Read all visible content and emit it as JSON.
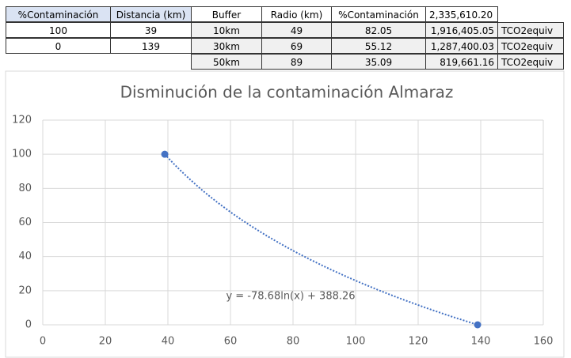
{
  "left_table": {
    "header": [
      "%Contaminación",
      "Distancia (km)"
    ],
    "rows": [
      [
        "100",
        "39"
      ],
      [
        "0",
        "139"
      ]
    ]
  },
  "right_table": {
    "header": [
      "Buffer",
      "Radio (km)",
      "%Contaminación",
      "2,335,610.20"
    ],
    "rows": [
      [
        "10km",
        "49",
        "82.05",
        "1,916,405.05",
        "TCO2equiv"
      ],
      [
        "30km",
        "69",
        "55.12",
        "1,287,400.03",
        "TCO2equiv"
      ],
      [
        "50km",
        "89",
        "35.09",
        "819,661.16",
        "TCO2equiv"
      ]
    ]
  },
  "chart_data": {
    "type": "scatter",
    "title": "Disminución de la contaminación Almaraz",
    "x": [
      39,
      139
    ],
    "values": [
      100,
      0
    ],
    "color": "#4472c4",
    "trendline": {
      "type": "log",
      "a": -78.68,
      "b": 388.26,
      "label": "y = -78.68ln(x) + 388.26"
    },
    "xlim": [
      0,
      160
    ],
    "xticks": [
      0,
      20,
      40,
      60,
      80,
      100,
      120,
      140,
      160
    ],
    "ylim": [
      0,
      120
    ],
    "yticks": [
      0,
      20,
      40,
      60,
      80,
      100,
      120
    ],
    "grid": true
  }
}
